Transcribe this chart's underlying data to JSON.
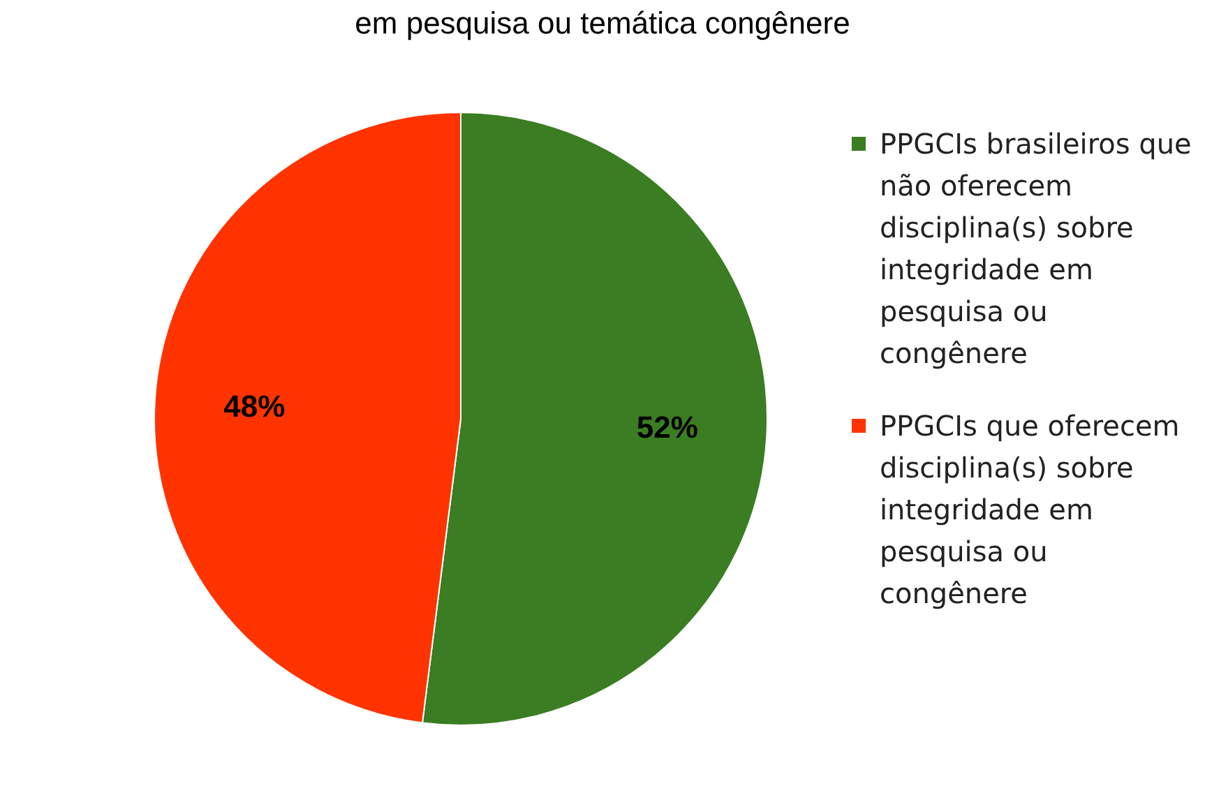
{
  "chart_data": {
    "type": "pie",
    "title": "em pesquisa ou temática congênere",
    "categories": [
      "PPGCIs brasileiros que não oferecem disciplina(s) sobre integridade em pesquisa ou congênere",
      "PPGCIs que oferecem disciplina(s) sobre integridade em pesquisa ou congênere"
    ],
    "values": [
      52,
      48
    ],
    "colors": [
      "#3a7d22",
      "#ff3300"
    ],
    "value_labels": [
      "52%",
      "48%"
    ],
    "legend": "right"
  }
}
